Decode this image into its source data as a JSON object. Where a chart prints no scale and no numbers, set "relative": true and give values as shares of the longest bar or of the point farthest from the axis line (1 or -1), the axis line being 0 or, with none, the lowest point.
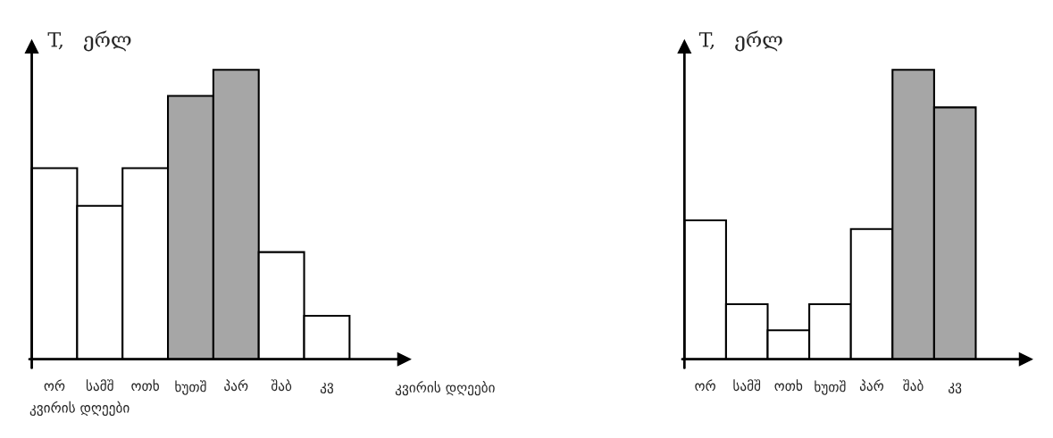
{
  "chart_data": [
    {
      "type": "bar",
      "relative": true,
      "ylabel": "T,   ერლ",
      "xlabel": "კვირის დღეები",
      "annotations": [
        "კვირის დღეები"
      ],
      "categories": [
        "ორ",
        "სამშ",
        "ოთხ",
        "ხუთშ",
        "პარ",
        "შაბ",
        "კვ"
      ],
      "values": [
        0.66,
        0.53,
        0.66,
        0.91,
        1,
        0.37,
        0.15
      ],
      "colors": [
        "#ffffff",
        "#ffffff",
        "#ffffff",
        "#a6a6a6",
        "#a6a6a6",
        "#ffffff",
        "#ffffff"
      ]
    },
    {
      "type": "bar",
      "relative": true,
      "ylabel": "T,   ერლ",
      "categories": [
        "ორ",
        "სამშ",
        "ოთხ",
        "ხუთშ",
        "პარ",
        "შაბ",
        "კვ"
      ],
      "values": [
        0.48,
        0.19,
        0.1,
        0.19,
        0.45,
        1,
        0.87
      ],
      "colors": [
        "#ffffff",
        "#ffffff",
        "#ffffff",
        "#ffffff",
        "#ffffff",
        "#a6a6a6",
        "#a6a6a6"
      ]
    }
  ]
}
